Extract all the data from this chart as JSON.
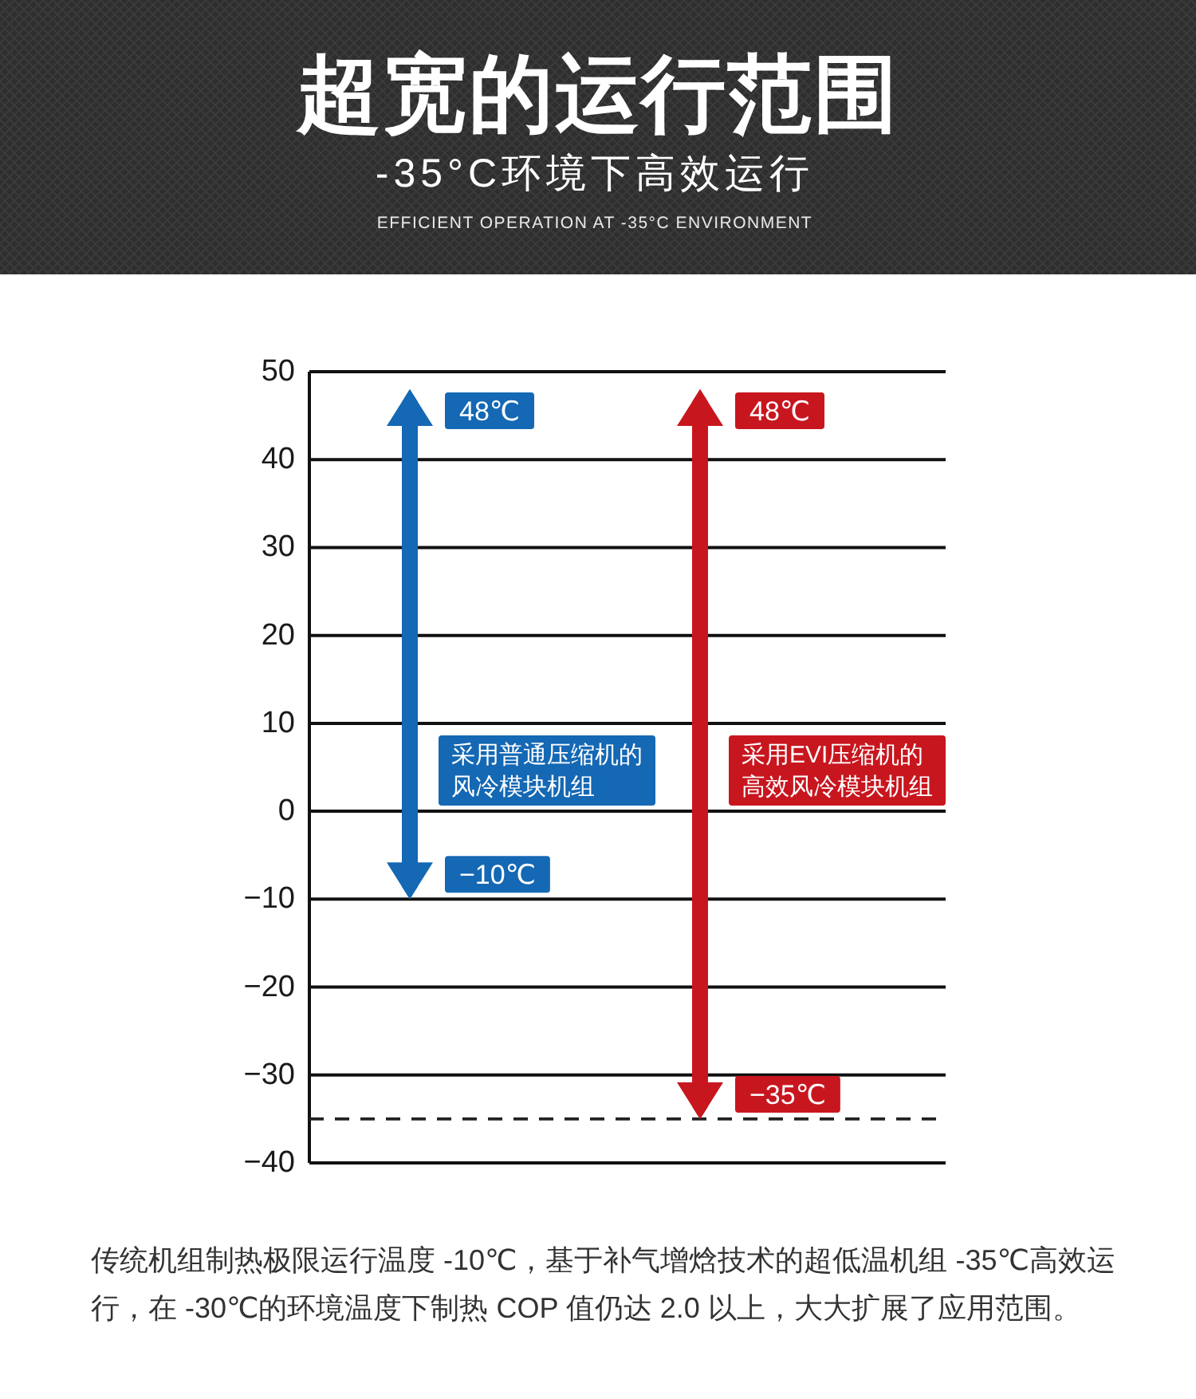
{
  "chart_data": {
    "type": "bar",
    "title": "超宽的运行范围",
    "subtitle": "-35°C环境下高效运行",
    "categories": [
      "采用普通压缩机的风冷模块机组",
      "采用EVI压缩机的高效风冷模块机组"
    ],
    "values": [
      58,
      83
    ],
    "base": [
      -10,
      -35
    ],
    "colors": [
      "#1468b4",
      "#c8161f"
    ],
    "ylim": [
      -40,
      50
    ],
    "yticks": [
      -40,
      -30,
      -20,
      -10,
      0,
      10,
      20,
      30,
      40,
      50
    ],
    "grid": "y",
    "ref_lines": [
      {
        "axis": "y",
        "value": -35,
        "color": "#222222",
        "line_style": "dashed"
      }
    ],
    "annotations": [
      "EFFICIENT OPERATION AT -35°C ENVIRONMENT",
      "48℃",
      "−10℃",
      "48℃",
      "−35℃",
      "传统机组制热极限运行温度 -10℃，基于补气增焓技术的超低温机组 -35℃高效运行，在 -30℃的环境温度下制热 COP 值仍达 2.0 以上，大大扩展了应用范围。"
    ]
  }
}
